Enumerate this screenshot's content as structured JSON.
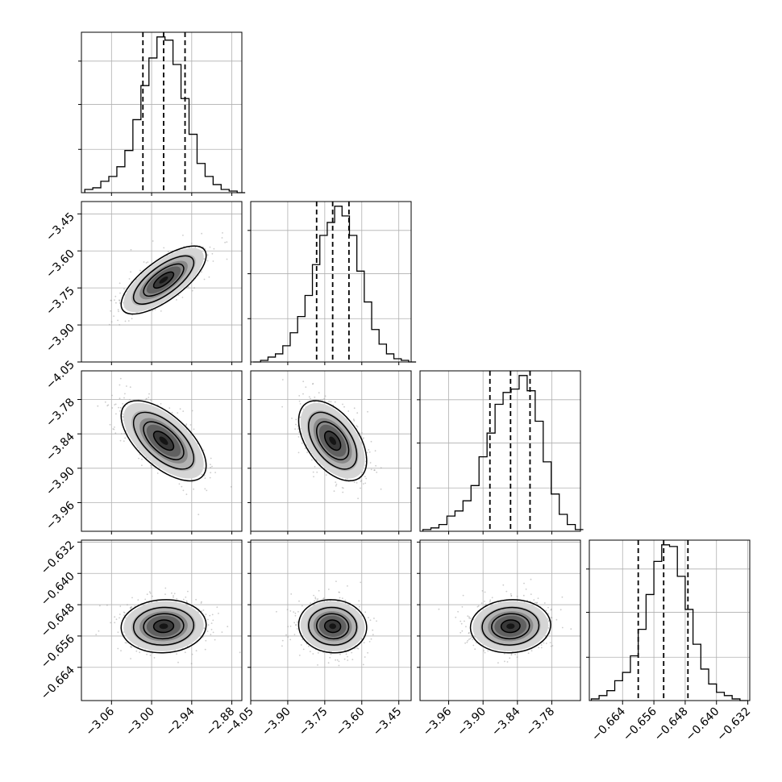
{
  "chart_data": {
    "type": "corner",
    "parameters": [
      {
        "range": [
          -3.105,
          -2.865
        ],
        "ticks": [
          -3.06,
          -3.0,
          -2.94,
          -2.88
        ],
        "tick_labels": [
          "−3.06",
          "−3.00",
          "−2.94",
          "−2.88"
        ],
        "quantiles": [
          -3.013,
          -2.982,
          -2.95
        ],
        "hist_bin_width": 0.012,
        "hist_bins": [
          -3.1,
          -3.088,
          -3.076,
          -3.064,
          -3.052,
          -3.04,
          -3.028,
          -3.016,
          -3.004,
          -2.992,
          -2.98,
          -2.968,
          -2.956,
          -2.944,
          -2.932,
          -2.92,
          -2.908,
          -2.896,
          -2.884,
          -2.872
        ],
        "hist_counts": [
          2,
          3,
          7,
          10,
          16,
          26,
          45,
          66,
          83,
          96,
          94,
          79,
          58,
          36,
          18,
          10,
          5,
          2,
          1,
          0
        ]
      },
      {
        "range": [
          -4.05,
          -3.4
        ],
        "ticks": [
          -4.05,
          -3.9,
          -3.75,
          -3.6,
          -3.45
        ],
        "tick_labels": [
          "−4.05",
          "−3.90",
          "−3.75",
          "−3.60",
          "−3.45"
        ],
        "quantiles": [
          -3.783,
          -3.718,
          -3.652
        ],
        "hist_bin_width": 0.03,
        "hist_bins": [
          -4.04,
          -4.01,
          -3.98,
          -3.95,
          -3.92,
          -3.89,
          -3.86,
          -3.83,
          -3.8,
          -3.77,
          -3.74,
          -3.71,
          -3.68,
          -3.65,
          -3.62,
          -3.59,
          -3.56,
          -3.53,
          -3.5,
          -3.47,
          -3.44,
          -3.41
        ],
        "hist_counts": [
          0,
          1,
          3,
          5,
          10,
          18,
          28,
          41,
          60,
          78,
          86,
          96,
          90,
          78,
          56,
          37,
          20,
          11,
          5,
          2,
          1,
          0
        ]
      },
      {
        "range": [
          -4.01,
          -3.73
        ],
        "ticks": [
          -3.96,
          -3.9,
          -3.84,
          -3.78
        ],
        "tick_labels": [
          "−3.96",
          "−3.90",
          "−3.84",
          "−3.78"
        ],
        "quantiles": [
          -3.888,
          -3.852,
          -3.818
        ],
        "hist_bin_width": 0.014,
        "hist_bins": [
          -4.005,
          -3.991,
          -3.977,
          -3.963,
          -3.949,
          -3.935,
          -3.921,
          -3.907,
          -3.893,
          -3.879,
          -3.865,
          -3.851,
          -3.837,
          -3.823,
          -3.809,
          -3.795,
          -3.781,
          -3.767,
          -3.753,
          -3.739
        ],
        "hist_counts": [
          1,
          2,
          4,
          9,
          12,
          18,
          27,
          44,
          58,
          75,
          82,
          84,
          92,
          83,
          65,
          41,
          22,
          10,
          4,
          1
        ]
      },
      {
        "range": [
          -0.6725,
          -0.6315
        ],
        "ticks": [
          -0.664,
          -0.656,
          -0.648,
          -0.64,
          -0.632
        ],
        "tick_labels": [
          "−0.664",
          "−0.656",
          "−0.648",
          "−0.640",
          "−0.632"
        ],
        "quantiles": [
          -0.66,
          -0.6535,
          -0.6473
        ],
        "hist_bin_width": 0.002,
        "hist_bins": [
          -0.672,
          -0.67,
          -0.668,
          -0.666,
          -0.664,
          -0.662,
          -0.66,
          -0.658,
          -0.656,
          -0.654,
          -0.652,
          -0.65,
          -0.648,
          -0.646,
          -0.644,
          -0.642,
          -0.64,
          -0.638,
          -0.636,
          -0.634
        ],
        "hist_counts": [
          1,
          3,
          6,
          12,
          17,
          27,
          43,
          64,
          84,
          94,
          93,
          75,
          55,
          34,
          19,
          10,
          5,
          3,
          1,
          0
        ]
      }
    ],
    "pairs": [
      {
        "x": 0,
        "y": 1,
        "center": [
          -2.982,
          -3.718
        ],
        "sd": [
          0.03,
          0.065
        ],
        "corr": 0.72
      },
      {
        "x": 0,
        "y": 2,
        "center": [
          -2.982,
          -3.852
        ],
        "sd": [
          0.03,
          0.033
        ],
        "corr": -0.62
      },
      {
        "x": 1,
        "y": 2,
        "center": [
          -3.718,
          -3.852
        ],
        "sd": [
          0.065,
          0.033
        ],
        "corr": -0.5
      },
      {
        "x": 0,
        "y": 3,
        "center": [
          -2.982,
          -0.6535
        ],
        "sd": [
          0.03,
          0.0032
        ],
        "corr": 0.05
      },
      {
        "x": 1,
        "y": 3,
        "center": [
          -3.718,
          -0.6535
        ],
        "sd": [
          0.065,
          0.0032
        ],
        "corr": -0.05
      },
      {
        "x": 2,
        "y": 3,
        "center": [
          -3.852,
          -0.6535
        ],
        "sd": [
          0.033,
          0.0032
        ],
        "corr": 0.05
      }
    ],
    "contour_levels_sigma": [
      0.5,
      1.0,
      1.5,
      2.0
    ],
    "grid": true,
    "legend": "none",
    "colors": {
      "line": "#000000",
      "grid": "#b0b0b0",
      "scatter": "#9a9a9a",
      "density_high": "#111111",
      "density_low": "#f0f0f0"
    }
  }
}
